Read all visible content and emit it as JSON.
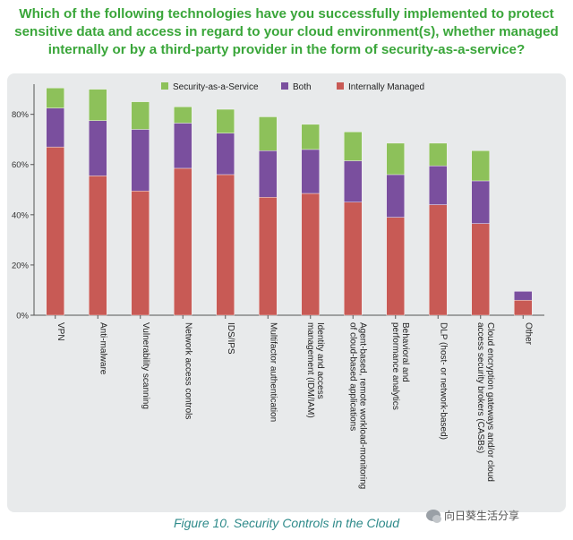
{
  "heading": "Which of the following technologies have you successfully implemented to protect sensitive data and access in regard to your cloud environment(s), whether managed internally or by a third-party provider in the form of security-as-a-service?",
  "caption": "Figure 10. Security Controls in the Cloud",
  "watermark": "向日葵生活分享",
  "colors": {
    "internally_managed": "#c85a55",
    "both": "#7a4f9e",
    "security_as_a_service": "#8dc15a",
    "heading": "#3aa63a",
    "caption": "#2e8a8a",
    "panel_background": "#e8eaeb"
  },
  "chart_data": {
    "type": "bar",
    "stacked": true,
    "categories": [
      "VPN",
      "Anti-malware",
      "Vulnerability scanning",
      "Network access controls",
      "IDS/IPS",
      "Multifactor authentication",
      "Identity and access management (IDM/IAM)",
      "Agent-based, remote workload-monitoring of cloud-based applications",
      "Behavioral and performance analytics",
      "DLP (host- or network-based)",
      "Cloud encryption gateways and/or cloud access security brokers (CASBs)",
      "Other"
    ],
    "series": [
      {
        "name": "Internally Managed",
        "values": [
          67,
          55.5,
          49.5,
          58.5,
          56,
          47,
          48.5,
          45,
          39,
          44,
          36.5,
          6
        ]
      },
      {
        "name": "Both",
        "values": [
          15.5,
          22,
          24.5,
          18,
          16.5,
          18.5,
          17.5,
          16.5,
          17,
          15.5,
          17,
          3.5
        ]
      },
      {
        "name": "Security-as-a-Service",
        "values": [
          8,
          12.5,
          11,
          6.5,
          9.5,
          13.5,
          10,
          11.5,
          12.5,
          9,
          12,
          0
        ]
      }
    ],
    "legend_order": [
      "Security-as-a-Service",
      "Both",
      "Internally Managed"
    ],
    "yticks": [
      "0%",
      "20%",
      "40%",
      "60%",
      "80%"
    ],
    "ytick_values": [
      0,
      20,
      40,
      60,
      80
    ],
    "ylim": [
      0,
      92
    ],
    "legend_position": "top",
    "grid": false,
    "title": "",
    "xlabel": "",
    "ylabel": ""
  }
}
